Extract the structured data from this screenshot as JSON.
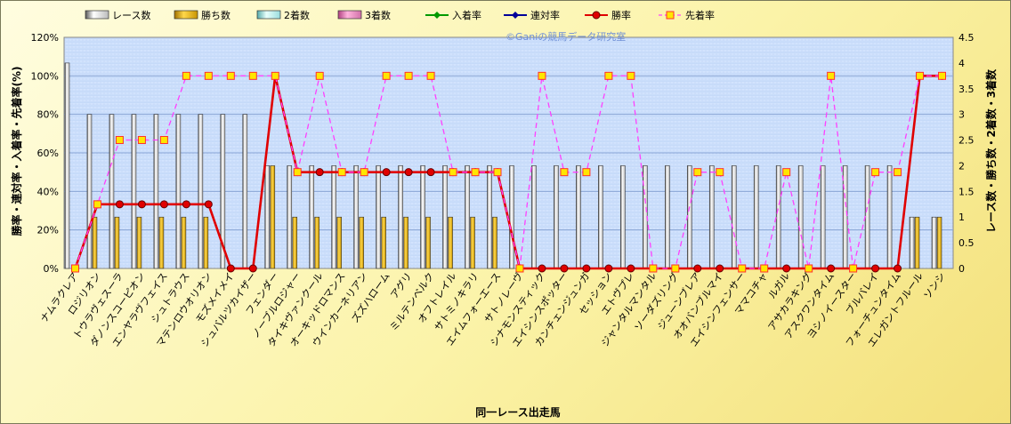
{
  "chart_data": {
    "type": "bar",
    "title": "",
    "watermark": "©Ganiの競馬データ研究室",
    "xlabel": "同一レース出走馬",
    "ylabel_left": "勝率・連対率・入着率・先着率(%)",
    "ylabel_right": "レース数・勝ち数・2着数・3着数",
    "ylim_left": [
      0,
      120
    ],
    "ylim_right": [
      0,
      4.5
    ],
    "yticks_left": [
      "0%",
      "20%",
      "40%",
      "60%",
      "80%",
      "100%",
      "120%"
    ],
    "yticks_right": [
      "0",
      "0.5",
      "1",
      "1.5",
      "2",
      "2.5",
      "3",
      "3.5",
      "4",
      "4.5"
    ],
    "grid": true,
    "legend_position": "top",
    "categories": [
      "ナムラクレア",
      "ロジリオン",
      "トウラヴェスーラ",
      "ダノンスコーピオン",
      "エンヤラヴフェイス",
      "シュトラウス",
      "マテンロウオリオン",
      "モズメイメイ",
      "シュバルツカイザー",
      "フェンダー",
      "ノーブルロジャー",
      "タイキヴァンクール",
      "オーキッドロマンス",
      "ウインカーネリアン",
      "ズズハローム",
      "アグリ",
      "ミルテンベルク",
      "オフトレイル",
      "サトミノキラリ",
      "エイムフォーエース",
      "サトノレーヴ",
      "シナモンスティック",
      "エイシンスポッター",
      "カンチェンジュンガ",
      "セッション",
      "エトヴプレ",
      "ジャンタルマンタル",
      "ソーダズリング",
      "ジューンブレア",
      "オオバンブルマイ",
      "エイシンフェンサー",
      "ママコチャ",
      "ルガル",
      "アサカラキング",
      "アスクワンタイム",
      "ヨシノイースター",
      "ブルバレイ",
      "フォーチュンタイム",
      "エレガントフルール",
      "ソンシ"
    ],
    "bar_series": [
      {
        "name": "レース数",
        "color": "#ffffff",
        "values": [
          4,
          3,
          3,
          3,
          3,
          3,
          3,
          3,
          3,
          2,
          2,
          2,
          2,
          2,
          2,
          2,
          2,
          2,
          2,
          2,
          2,
          2,
          2,
          2,
          2,
          2,
          2,
          2,
          2,
          2,
          2,
          2,
          2,
          2,
          2,
          2,
          2,
          2,
          1,
          1
        ]
      },
      {
        "name": "勝ち数",
        "color": "#f0c020",
        "values": [
          0,
          1,
          1,
          1,
          1,
          1,
          1,
          0,
          0,
          2,
          1,
          1,
          1,
          1,
          1,
          1,
          1,
          1,
          1,
          1,
          0,
          0,
          0,
          0,
          0,
          0,
          0,
          0,
          0,
          0,
          0,
          0,
          0,
          0,
          0,
          0,
          0,
          0,
          1,
          1
        ]
      },
      {
        "name": "2着数",
        "color": "#d8fff8",
        "values": [
          0,
          0,
          0,
          0,
          0,
          0,
          0,
          0,
          0,
          0,
          0,
          0,
          0,
          0,
          0,
          0,
          0,
          0,
          0,
          0,
          0,
          0,
          0,
          0,
          0,
          0,
          0,
          0,
          0,
          0,
          0,
          0,
          0,
          0,
          0,
          0,
          0,
          0,
          0,
          0
        ]
      },
      {
        "name": "3着数",
        "color": "#ff9ad0",
        "values": [
          0,
          0,
          0,
          0,
          0,
          0,
          0,
          0,
          0,
          0,
          0,
          0,
          0,
          0,
          0,
          0,
          0,
          0,
          0,
          0,
          0,
          0,
          0,
          0,
          0,
          0,
          0,
          0,
          0,
          0,
          0,
          0,
          0,
          0,
          0,
          0,
          0,
          0,
          0,
          0
        ]
      }
    ],
    "line_series": [
      {
        "name": "入着率",
        "color": "#009900",
        "marker": "diamond",
        "values": []
      },
      {
        "name": "連対率",
        "color": "#000099",
        "marker": "diamond",
        "values": []
      },
      {
        "name": "勝率",
        "color": "#e00000",
        "marker": "circle",
        "values": [
          0,
          33.3,
          33.3,
          33.3,
          33.3,
          33.3,
          33.3,
          0,
          0,
          100,
          50,
          50,
          50,
          50,
          50,
          50,
          50,
          50,
          50,
          50,
          0,
          0,
          0,
          0,
          0,
          0,
          0,
          0,
          0,
          0,
          0,
          0,
          0,
          0,
          0,
          0,
          0,
          0,
          100,
          100
        ]
      },
      {
        "name": "先着率",
        "color": "#ff40ff",
        "marker": "square",
        "values": [
          0,
          33.3,
          66.7,
          66.7,
          66.7,
          100,
          100,
          100,
          100,
          100,
          50,
          100,
          50,
          50,
          100,
          100,
          100,
          50,
          50,
          50,
          0,
          100,
          50,
          50,
          100,
          100,
          0,
          0,
          50,
          50,
          0,
          0,
          50,
          0,
          100,
          0,
          50,
          50,
          100,
          100
        ]
      }
    ]
  }
}
